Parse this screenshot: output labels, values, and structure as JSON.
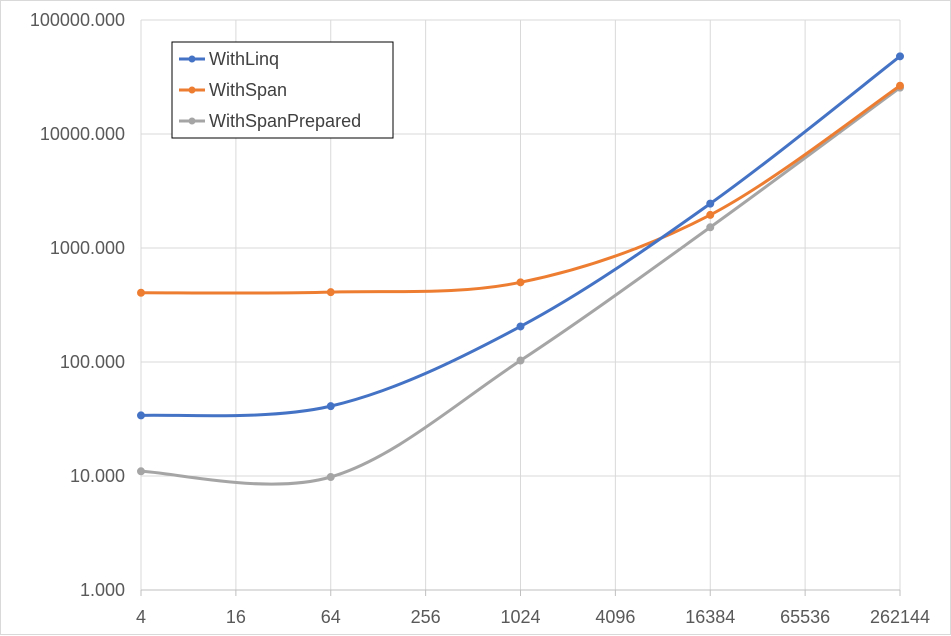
{
  "chart_data": {
    "type": "line",
    "title": "",
    "xlabel": "",
    "ylabel": "",
    "x": [
      4,
      64,
      1024,
      16384,
      262144
    ],
    "x_scale": "log2",
    "y_scale": "log10",
    "ylim": [
      1,
      100000
    ],
    "x_ticks": [
      "4",
      "16",
      "64",
      "256",
      "1024",
      "4096",
      "16384",
      "65536",
      "262144"
    ],
    "y_ticks": [
      "1.000",
      "10.000",
      "100.000",
      "1000.000",
      "10000.000",
      "100000.000"
    ],
    "grid": true,
    "legend_position": "top-left",
    "series": [
      {
        "name": "WithLinq",
        "color": "#4472c4",
        "values": [
          34,
          41,
          205,
          2450,
          48000
        ]
      },
      {
        "name": "WithSpan",
        "color": "#ed7d31",
        "values": [
          405,
          410,
          500,
          1950,
          26500
        ]
      },
      {
        "name": "WithSpanPrepared",
        "color": "#a5a5a5",
        "values": [
          11,
          9.8,
          103,
          1520,
          25500
        ]
      }
    ]
  }
}
